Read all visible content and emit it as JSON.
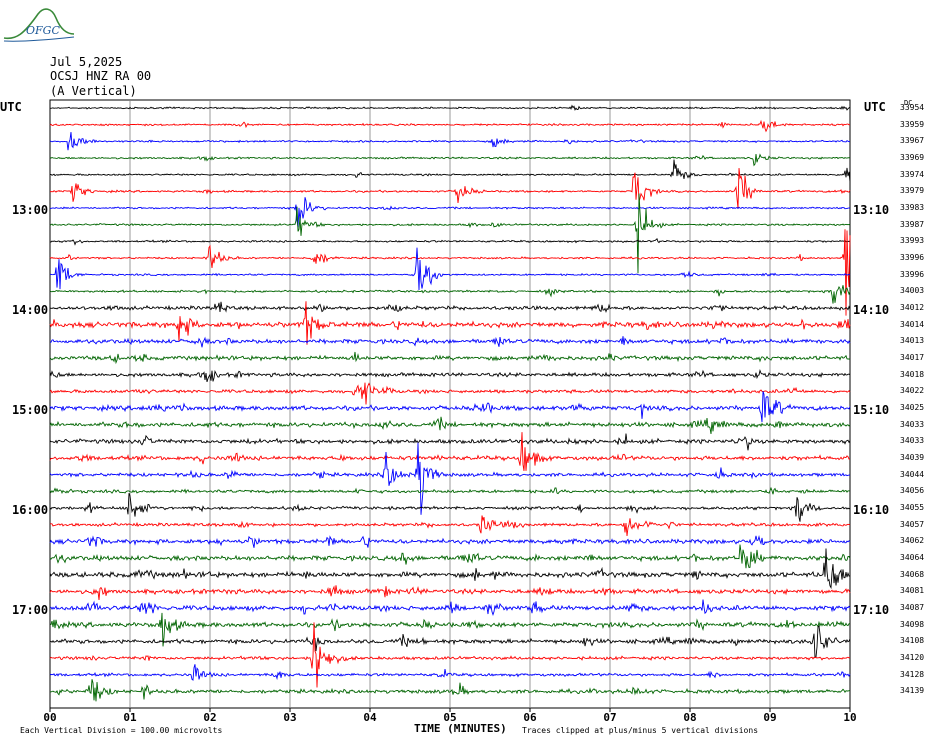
{
  "logo": {
    "text": "OFGC",
    "color": "#1f5a9a"
  },
  "header": {
    "date": "Jul 5,2025",
    "station": "OCSJ HNZ RA 00",
    "component": "(A Vertical)"
  },
  "utc_left": "UTC",
  "utc_right": "UTC",
  "counts_header": "DC",
  "time_labels_left": [
    "13:00",
    "14:00",
    "15:00",
    "16:00",
    "17:00"
  ],
  "time_labels_right": [
    "13:10",
    "14:10",
    "15:10",
    "16:10",
    "17:10"
  ],
  "x_axis_title": "TIME (MINUTES)",
  "scale_note": "Each Vertical Division =  100.00 microvolts",
  "clip_note": "Traces clipped at plus/minus 5 vertical divisions",
  "colors": {
    "black": "#000000",
    "red": "#ff0000",
    "blue": "#0000ff",
    "green": "#006400",
    "grid": "#808080"
  },
  "chart_data": {
    "type": "line",
    "xlabel": "TIME (MINUTES)",
    "xlim": [
      0,
      10
    ],
    "x_ticks": [
      "00",
      "01",
      "02",
      "03",
      "04",
      "05",
      "06",
      "07",
      "08",
      "09",
      "10"
    ],
    "trace_colors": [
      "black",
      "red",
      "blue",
      "green"
    ],
    "trace_counts": [
      "33954",
      "33959",
      "33967",
      "33969",
      "33974",
      "33979",
      "33983",
      "33987",
      "33993",
      "33996",
      "33996",
      "34003",
      "34012",
      "34014",
      "34013",
      "34017",
      "34018",
      "34022",
      "34025",
      "34033",
      "34033",
      "34039",
      "34044",
      "34056",
      "34055",
      "34057",
      "34062",
      "34064",
      "34068",
      "34081",
      "34087",
      "34098",
      "34108",
      "34120",
      "34128",
      "34139"
    ],
    "trace_activity": [
      0.5,
      0.6,
      0.6,
      0.6,
      0.6,
      0.7,
      0.6,
      0.7,
      0.7,
      0.6,
      0.6,
      0.9,
      2.0,
      3.2,
      2.4,
      2.4,
      2.0,
      1.8,
      2.6,
      2.6,
      2.4,
      2.4,
      1.8,
      1.6,
      1.5,
      1.6,
      2.6,
      2.8,
      3.0,
      2.6,
      3.0,
      2.8,
      2.4,
      1.6,
      1.4,
      2.0
    ],
    "events": [
      {
        "trace": 1,
        "minute": 8.9,
        "amp": 1.2
      },
      {
        "trace": 2,
        "minute": 0.25,
        "amp": 1.8
      },
      {
        "trace": 2,
        "minute": 5.55,
        "amp": 0.6
      },
      {
        "trace": 3,
        "minute": 8.8,
        "amp": 0.7
      },
      {
        "trace": 4,
        "minute": 7.8,
        "amp": 1.6
      },
      {
        "trace": 4,
        "minute": 9.95,
        "amp": 2.0
      },
      {
        "trace": 5,
        "minute": 0.3,
        "amp": 1.2
      },
      {
        "trace": 5,
        "minute": 5.1,
        "amp": 1.4
      },
      {
        "trace": 5,
        "minute": 7.3,
        "amp": 3.0
      },
      {
        "trace": 5,
        "minute": 8.6,
        "amp": 3.0
      },
      {
        "trace": 6,
        "minute": 3.1,
        "amp": 2.6
      },
      {
        "trace": 7,
        "minute": 3.1,
        "amp": 1.6
      },
      {
        "trace": 7,
        "minute": 7.35,
        "amp": 3.5
      },
      {
        "trace": 9,
        "minute": 2.0,
        "amp": 1.6
      },
      {
        "trace": 9,
        "minute": 3.3,
        "amp": 1.4
      },
      {
        "trace": 9,
        "minute": 9.95,
        "amp": 5.0
      },
      {
        "trace": 10,
        "minute": 0.1,
        "amp": 2.4
      },
      {
        "trace": 10,
        "minute": 4.6,
        "amp": 5.0
      },
      {
        "trace": 11,
        "minute": 9.8,
        "amp": 1.8
      },
      {
        "trace": 13,
        "minute": 1.6,
        "amp": 2.0
      },
      {
        "trace": 13,
        "minute": 3.2,
        "amp": 2.0
      },
      {
        "trace": 17,
        "minute": 3.9,
        "amp": 2.0
      },
      {
        "trace": 18,
        "minute": 8.9,
        "amp": 2.2
      },
      {
        "trace": 21,
        "minute": 5.9,
        "amp": 2.4
      },
      {
        "trace": 22,
        "minute": 4.2,
        "amp": 2.2
      },
      {
        "trace": 22,
        "minute": 4.6,
        "amp": 5.0
      },
      {
        "trace": 24,
        "minute": 1.0,
        "amp": 2.2
      },
      {
        "trace": 24,
        "minute": 9.35,
        "amp": 1.8
      },
      {
        "trace": 25,
        "minute": 5.4,
        "amp": 1.2
      },
      {
        "trace": 25,
        "minute": 7.2,
        "amp": 1.6
      },
      {
        "trace": 27,
        "minute": 8.65,
        "amp": 2.8
      },
      {
        "trace": 28,
        "minute": 9.7,
        "amp": 4.0
      },
      {
        "trace": 31,
        "minute": 1.4,
        "amp": 2.2
      },
      {
        "trace": 32,
        "minute": 9.55,
        "amp": 3.0
      },
      {
        "trace": 33,
        "minute": 3.3,
        "amp": 5.0
      },
      {
        "trace": 34,
        "minute": 1.8,
        "amp": 1.0
      },
      {
        "trace": 35,
        "minute": 0.5,
        "amp": 2.0
      }
    ]
  }
}
